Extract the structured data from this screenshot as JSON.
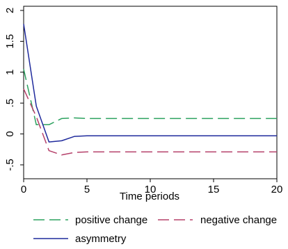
{
  "chart_data": {
    "type": "line",
    "title": "",
    "xlabel": "Time periods",
    "ylabel": "",
    "xlim": [
      0,
      20
    ],
    "ylim": [
      -0.5,
      2
    ],
    "xticks": [
      0,
      5,
      10,
      15,
      20
    ],
    "xtick_labels": [
      "0",
      "5",
      "10",
      "15",
      "20"
    ],
    "yticks": [
      -0.5,
      0,
      0.5,
      1,
      1.5,
      2
    ],
    "ytick_labels": [
      "-.5",
      "0",
      ".5",
      "1",
      "1.5",
      "2"
    ],
    "grid": false,
    "legend_position": "bottom",
    "series": [
      {
        "name": "positive change",
        "color": "#2ca25f",
        "dash": "dashed",
        "x": [
          0,
          1,
          2,
          3,
          4,
          5,
          6,
          7,
          8,
          9,
          10,
          11,
          12,
          13,
          14,
          15,
          16,
          17,
          18,
          19,
          20
        ],
        "y": [
          1.05,
          0.15,
          0.15,
          0.25,
          0.26,
          0.25,
          0.25,
          0.25,
          0.25,
          0.25,
          0.25,
          0.25,
          0.25,
          0.25,
          0.25,
          0.25,
          0.25,
          0.25,
          0.25,
          0.25,
          0.25
        ]
      },
      {
        "name": "negative change",
        "color": "#b5406a",
        "dash": "dashed",
        "x": [
          0,
          1,
          2,
          3,
          4,
          5,
          6,
          7,
          8,
          9,
          10,
          11,
          12,
          13,
          14,
          15,
          16,
          17,
          18,
          19,
          20
        ],
        "y": [
          0.73,
          0.28,
          -0.27,
          -0.34,
          -0.3,
          -0.29,
          -0.29,
          -0.29,
          -0.29,
          -0.29,
          -0.29,
          -0.29,
          -0.29,
          -0.29,
          -0.29,
          -0.29,
          -0.29,
          -0.29,
          -0.29,
          -0.29,
          -0.29
        ]
      },
      {
        "name": "asymmetry",
        "color": "#1f2a9c",
        "dash": "solid",
        "x": [
          0,
          1,
          2,
          3,
          4,
          5,
          6,
          7,
          8,
          9,
          10,
          11,
          12,
          13,
          14,
          15,
          16,
          17,
          18,
          19,
          20
        ],
        "y": [
          1.78,
          0.45,
          -0.13,
          -0.11,
          -0.04,
          -0.03,
          -0.03,
          -0.03,
          -0.03,
          -0.03,
          -0.03,
          -0.03,
          -0.03,
          -0.03,
          -0.03,
          -0.03,
          -0.03,
          -0.03,
          -0.03,
          -0.03,
          -0.03
        ]
      }
    ]
  }
}
